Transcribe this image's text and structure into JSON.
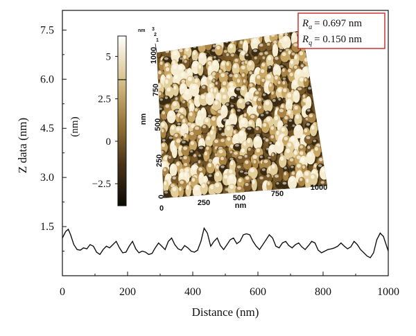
{
  "chart_data": {
    "type": "line",
    "xlabel": "Distance (nm)",
    "ylabel": "Z data (nm)",
    "xlim": [
      0,
      1000
    ],
    "ylim": [
      0,
      8.1
    ],
    "x_ticks": [
      "0",
      "200",
      "400",
      "600",
      "800",
      "1000"
    ],
    "x_tick_values": [
      0,
      200,
      400,
      600,
      800,
      1000
    ],
    "y_ticks": [
      "1.5",
      "3.0",
      "4.5",
      "6.0",
      "7.5"
    ],
    "y_tick_values": [
      1.5,
      3.0,
      4.5,
      6.0,
      7.5
    ],
    "grid": false,
    "line_color": "#111111",
    "series": [
      {
        "x": [
          0,
          10,
          18,
          25,
          35,
          45,
          55,
          65,
          75,
          85,
          95,
          105,
          115,
          125,
          135,
          145,
          155,
          165,
          175,
          185,
          195,
          205,
          215,
          225,
          235,
          245,
          255,
          265,
          275,
          285,
          295,
          305,
          315,
          325,
          335,
          345,
          355,
          365,
          375,
          385,
          395,
          405,
          415,
          425,
          435,
          445,
          455,
          465,
          475,
          485,
          495,
          505,
          515,
          525,
          535,
          545,
          555,
          565,
          575,
          585,
          595,
          605,
          615,
          625,
          635,
          645,
          655,
          665,
          675,
          685,
          695,
          705,
          715,
          725,
          735,
          745,
          755,
          765,
          775,
          785,
          795,
          805,
          815,
          825,
          835,
          845,
          855,
          865,
          875,
          885,
          895,
          905,
          915,
          925,
          935,
          945,
          955,
          965,
          975,
          985,
          1000
        ],
        "values": [
          1.15,
          1.35,
          1.42,
          1.25,
          0.95,
          0.8,
          0.78,
          0.85,
          0.82,
          0.95,
          0.9,
          0.72,
          0.65,
          0.8,
          0.9,
          0.85,
          0.95,
          1.05,
          0.85,
          0.7,
          0.72,
          0.9,
          1.05,
          0.82,
          0.7,
          0.75,
          0.72,
          0.65,
          0.68,
          0.85,
          1.0,
          0.9,
          0.8,
          1.05,
          1.15,
          0.95,
          0.82,
          0.78,
          0.92,
          0.85,
          0.75,
          0.72,
          0.78,
          1.05,
          1.45,
          1.3,
          0.9,
          1.05,
          1.15,
          0.92,
          0.8,
          0.95,
          1.1,
          1.15,
          0.98,
          1.05,
          1.25,
          1.28,
          1.25,
          1.05,
          0.9,
          0.8,
          0.95,
          1.1,
          1.25,
          1.15,
          0.9,
          0.85,
          1.0,
          1.05,
          0.92,
          0.85,
          0.95,
          1.0,
          0.88,
          0.8,
          0.92,
          1.05,
          1.0,
          0.78,
          0.7,
          0.75,
          0.8,
          0.82,
          0.85,
          0.9,
          1.0,
          0.9,
          0.82,
          0.88,
          1.05,
          0.95,
          0.8,
          0.7,
          0.6,
          0.55,
          0.7,
          1.1,
          1.3,
          1.2,
          0.75
        ]
      }
    ]
  },
  "inset_afm": {
    "colorbar_ticks": [
      "5",
      "2.5",
      "0",
      "−2.5"
    ],
    "colorbar_tick_values": [
      5,
      2.5,
      0,
      -2.5
    ],
    "colorbar_range": [
      -3.8,
      6.2
    ],
    "colorbar_unit": "(nm)",
    "y_axis_ticks": [
      "1000",
      "750",
      "500",
      "250",
      "0"
    ],
    "y_axis_label": "nm",
    "x_axis_ticks": [
      "250",
      "500",
      "750",
      "1000"
    ],
    "x_axis_label": "nm",
    "origin_label": "0",
    "z_axis_unit": "nm",
    "z_axis_ticks": [
      "3",
      "2",
      "1"
    ],
    "colors": {
      "low": "#1a1208",
      "mid": "#a07c3e",
      "high": "#f4ecd6"
    }
  },
  "roughness": {
    "ra_symbol": "R",
    "ra_sub": "a",
    "ra_value": "= 0.697 nm",
    "rq_symbol": "R",
    "rq_sub": "q",
    "rq_value": "= 0.150 nm",
    "box_color": "#cc2222"
  }
}
